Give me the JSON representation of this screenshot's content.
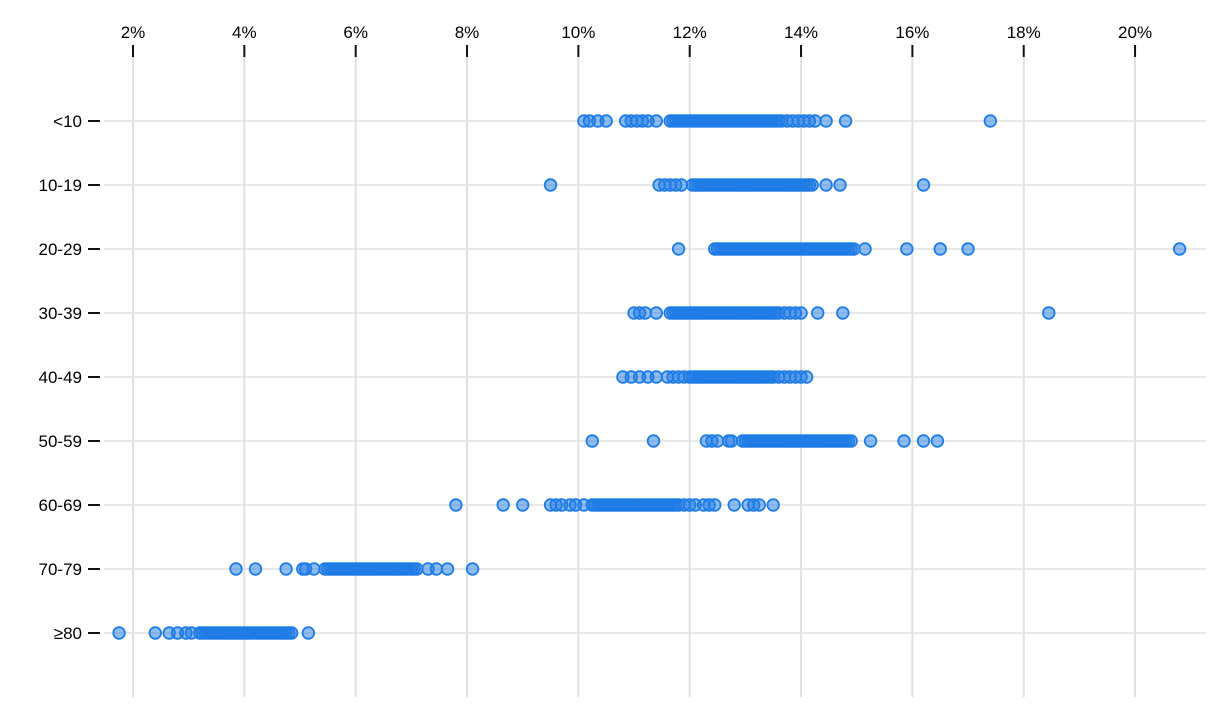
{
  "chart_data": {
    "type": "scatter",
    "variant": "horizontal-strip-plot",
    "title": "",
    "xlabel": "",
    "ylabel": "",
    "x_axis_position": "top",
    "x_unit": "%",
    "x_ticks": [
      2,
      4,
      6,
      8,
      10,
      12,
      14,
      16,
      18,
      20
    ],
    "x_tick_labels": [
      "2%",
      "4%",
      "6%",
      "8%",
      "10%",
      "12%",
      "14%",
      "16%",
      "18%",
      "20%"
    ],
    "xlim": [
      1.5,
      21.3
    ],
    "grid": true,
    "legend": false,
    "marker": {
      "shape": "circle",
      "stroke_color": "#1f7ce5",
      "fill_color": "#1f7ce5",
      "fill_opacity": 0.5,
      "radius_px": 5.8,
      "stroke_width_px": 1.8
    },
    "gridline_color": "#e0e0e0",
    "tick_color": "#111111",
    "categories": [
      "<10",
      "10-19",
      "20-29",
      "30-39",
      "40-49",
      "50-59",
      "60-69",
      "70-79",
      "≥80"
    ],
    "rows": [
      {
        "label": "<10",
        "values": [
          10.1,
          10.2,
          10.35,
          10.5,
          10.85,
          10.95,
          11.05,
          11.15,
          11.25,
          11.4,
          11.65,
          11.7,
          11.75,
          11.8,
          11.85,
          11.9,
          11.95,
          12.0,
          12.05,
          12.1,
          12.15,
          12.2,
          12.25,
          12.3,
          12.35,
          12.4,
          12.45,
          12.5,
          12.55,
          12.6,
          12.65,
          12.7,
          12.75,
          12.8,
          12.85,
          12.9,
          12.95,
          13.0,
          13.05,
          13.1,
          13.15,
          13.2,
          13.25,
          13.3,
          13.35,
          13.4,
          13.45,
          13.5,
          13.55,
          13.6,
          13.65,
          13.75,
          13.85,
          13.95,
          14.05,
          14.15,
          14.25,
          14.45,
          14.8,
          17.4
        ]
      },
      {
        "label": "10-19",
        "values": [
          9.5,
          11.45,
          11.55,
          11.65,
          11.75,
          11.85,
          12.05,
          12.1,
          12.15,
          12.2,
          12.25,
          12.3,
          12.35,
          12.4,
          12.45,
          12.5,
          12.55,
          12.6,
          12.65,
          12.7,
          12.75,
          12.8,
          12.85,
          12.9,
          12.95,
          13.0,
          13.05,
          13.1,
          13.15,
          13.2,
          13.25,
          13.3,
          13.35,
          13.4,
          13.45,
          13.5,
          13.55,
          13.6,
          13.65,
          13.7,
          13.75,
          13.8,
          13.85,
          13.9,
          13.95,
          14.0,
          14.05,
          14.1,
          14.15,
          14.2,
          14.45,
          14.7,
          16.2
        ]
      },
      {
        "label": "20-29",
        "values": [
          11.8,
          12.45,
          12.5,
          12.55,
          12.6,
          12.65,
          12.7,
          12.75,
          12.8,
          12.85,
          12.9,
          12.95,
          13.0,
          13.05,
          13.1,
          13.15,
          13.2,
          13.25,
          13.3,
          13.35,
          13.4,
          13.45,
          13.5,
          13.55,
          13.6,
          13.65,
          13.7,
          13.75,
          13.8,
          13.85,
          13.9,
          13.95,
          14.0,
          14.05,
          14.1,
          14.15,
          14.2,
          14.25,
          14.3,
          14.35,
          14.4,
          14.45,
          14.5,
          14.55,
          14.6,
          14.65,
          14.7,
          14.75,
          14.8,
          14.85,
          14.9,
          14.95,
          15.15,
          15.9,
          16.5,
          17.0,
          20.8
        ]
      },
      {
        "label": "30-39",
        "values": [
          11.0,
          11.1,
          11.2,
          11.4,
          11.65,
          11.7,
          11.75,
          11.8,
          11.85,
          11.9,
          11.95,
          12.0,
          12.05,
          12.1,
          12.15,
          12.2,
          12.25,
          12.3,
          12.35,
          12.4,
          12.45,
          12.5,
          12.55,
          12.6,
          12.65,
          12.7,
          12.75,
          12.8,
          12.85,
          12.9,
          12.95,
          13.0,
          13.05,
          13.1,
          13.15,
          13.2,
          13.25,
          13.3,
          13.35,
          13.4,
          13.45,
          13.5,
          13.55,
          13.6,
          13.7,
          13.8,
          13.9,
          14.0,
          14.3,
          14.75,
          18.45
        ]
      },
      {
        "label": "40-49",
        "values": [
          10.8,
          10.95,
          11.1,
          11.25,
          11.4,
          11.6,
          11.7,
          11.8,
          11.9,
          12.0,
          12.05,
          12.1,
          12.15,
          12.2,
          12.25,
          12.3,
          12.35,
          12.4,
          12.45,
          12.5,
          12.55,
          12.6,
          12.65,
          12.7,
          12.75,
          12.8,
          12.85,
          12.9,
          12.95,
          13.0,
          13.05,
          13.1,
          13.15,
          13.2,
          13.25,
          13.3,
          13.35,
          13.4,
          13.45,
          13.5,
          13.6,
          13.7,
          13.8,
          13.9,
          14.0,
          14.1
        ]
      },
      {
        "label": "50-59",
        "values": [
          10.25,
          11.35,
          12.3,
          12.4,
          12.5,
          12.7,
          12.75,
          12.95,
          13.0,
          13.05,
          13.1,
          13.15,
          13.2,
          13.25,
          13.3,
          13.35,
          13.4,
          13.45,
          13.5,
          13.55,
          13.6,
          13.65,
          13.7,
          13.75,
          13.8,
          13.85,
          13.9,
          13.95,
          14.0,
          14.05,
          14.1,
          14.15,
          14.2,
          14.25,
          14.3,
          14.35,
          14.4,
          14.45,
          14.5,
          14.55,
          14.6,
          14.65,
          14.7,
          14.75,
          14.8,
          14.85,
          14.9,
          15.25,
          15.85,
          16.2,
          16.45
        ]
      },
      {
        "label": "60-69",
        "values": [
          7.8,
          8.65,
          9.0,
          9.5,
          9.6,
          9.7,
          9.85,
          9.95,
          10.1,
          10.25,
          10.3,
          10.35,
          10.4,
          10.45,
          10.5,
          10.55,
          10.6,
          10.65,
          10.7,
          10.75,
          10.8,
          10.85,
          10.9,
          10.95,
          11.0,
          11.05,
          11.1,
          11.15,
          11.2,
          11.25,
          11.3,
          11.35,
          11.4,
          11.45,
          11.5,
          11.55,
          11.6,
          11.65,
          11.7,
          11.75,
          11.8,
          11.9,
          12.0,
          12.1,
          12.25,
          12.35,
          12.45,
          12.8,
          13.05,
          13.15,
          13.25,
          13.5
        ]
      },
      {
        "label": "70-79",
        "values": [
          3.85,
          4.2,
          4.75,
          5.05,
          5.1,
          5.25,
          5.45,
          5.5,
          5.55,
          5.6,
          5.65,
          5.7,
          5.75,
          5.8,
          5.85,
          5.9,
          5.95,
          6.0,
          6.05,
          6.1,
          6.15,
          6.2,
          6.25,
          6.3,
          6.35,
          6.4,
          6.45,
          6.5,
          6.55,
          6.6,
          6.65,
          6.7,
          6.75,
          6.8,
          6.85,
          6.9,
          6.95,
          7.0,
          7.05,
          7.1,
          7.3,
          7.45,
          7.65,
          8.1
        ]
      },
      {
        "label": "≥80",
        "values": [
          1.75,
          2.4,
          2.65,
          2.8,
          2.95,
          3.05,
          3.2,
          3.25,
          3.3,
          3.35,
          3.4,
          3.45,
          3.5,
          3.55,
          3.6,
          3.65,
          3.7,
          3.75,
          3.8,
          3.85,
          3.9,
          3.95,
          4.0,
          4.05,
          4.1,
          4.15,
          4.2,
          4.25,
          4.3,
          4.35,
          4.4,
          4.45,
          4.5,
          4.55,
          4.6,
          4.65,
          4.7,
          4.75,
          4.8,
          4.85,
          5.15
        ]
      }
    ]
  }
}
